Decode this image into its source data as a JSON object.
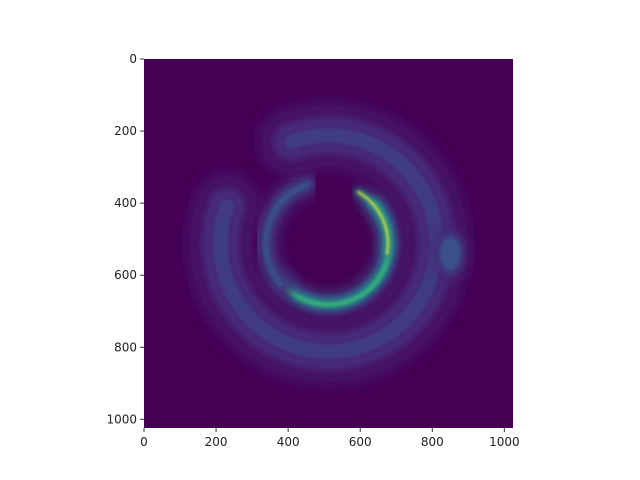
{
  "chart_data": {
    "type": "heatmap",
    "title": "",
    "xlabel": "",
    "ylabel": "",
    "xlim": [
      0,
      1024
    ],
    "ylim": [
      1024,
      0
    ],
    "x_ticks": [
      0,
      200,
      400,
      600,
      800,
      1000
    ],
    "y_ticks": [
      0,
      200,
      400,
      600,
      800,
      1000
    ],
    "colormap": "viridis",
    "background_color": "#440154",
    "grid": false,
    "features": [
      {
        "name": "bright-inner-arc",
        "center": [
          512,
          512
        ],
        "radius": 170,
        "start_deg": -40,
        "end_deg": 140,
        "width": 28,
        "intensity": 0.75
      },
      {
        "name": "bright-core-streak",
        "center": [
          512,
          512
        ],
        "radius": 165,
        "start_deg": -60,
        "end_deg": 10,
        "width": 12,
        "intensity": 1.0
      },
      {
        "name": "inner-arc-tail",
        "center": [
          512,
          512
        ],
        "radius": 175,
        "start_deg": 140,
        "end_deg": 250,
        "width": 34,
        "intensity": 0.3
      },
      {
        "name": "outer-arc",
        "center": [
          512,
          512
        ],
        "radius": 300,
        "start_deg": -110,
        "end_deg": 200,
        "width": 80,
        "intensity": 0.22
      },
      {
        "name": "outer-right-blob",
        "center": [
          850,
          540
        ],
        "radius": 40,
        "start_deg": 0,
        "end_deg": 360,
        "width": 60,
        "intensity": 0.3
      }
    ]
  }
}
